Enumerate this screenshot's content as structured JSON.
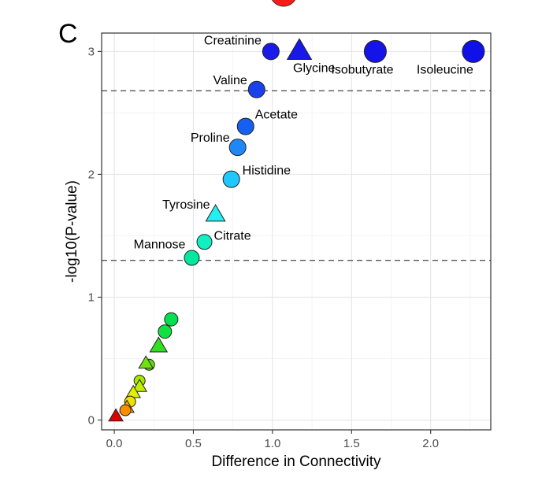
{
  "panel_label": "C",
  "chart_data": {
    "type": "scatter",
    "title": "",
    "xlabel": "Difference in Connectivity",
    "ylabel": "-log10(P-value)",
    "xlim": [
      -0.08,
      2.38
    ],
    "ylim": [
      -0.08,
      3.15
    ],
    "x_ticks": [
      0.0,
      0.5,
      1.0,
      1.5,
      2.0
    ],
    "x_tick_labels": [
      "0.0",
      "0.5",
      "1.0",
      "1.5",
      "2.0"
    ],
    "y_ticks": [
      0,
      1,
      2,
      3
    ],
    "y_tick_labels": [
      "0",
      "1",
      "2",
      "3"
    ],
    "grid": true,
    "reference_lines_y": [
      2.68,
      1.3
    ],
    "color_scale": [
      "#e00000",
      "#ff8c00",
      "#f2f000",
      "#7cf000",
      "#00e040",
      "#00f0c8",
      "#20d8ff",
      "#1e90ff",
      "#1046f0",
      "#1010e8"
    ],
    "points": [
      {
        "label": "Isoleucine",
        "x": 2.27,
        "y": 3.0,
        "shape": "circle",
        "color": "#1010e8"
      },
      {
        "label": "Isobutyrate",
        "x": 1.65,
        "y": 3.0,
        "shape": "circle",
        "color": "#1414e8"
      },
      {
        "label": "Glycine",
        "x": 1.17,
        "y": 3.0,
        "shape": "triangle",
        "color": "#1818e8"
      },
      {
        "label": "Creatinine",
        "x": 0.99,
        "y": 3.0,
        "shape": "circle",
        "color": "#1a1aea"
      },
      {
        "label": "Valine",
        "x": 0.9,
        "y": 2.69,
        "shape": "circle",
        "color": "#1a40ea"
      },
      {
        "label": "Acetate",
        "x": 0.83,
        "y": 2.39,
        "shape": "circle",
        "color": "#1560f0"
      },
      {
        "label": "Proline",
        "x": 0.78,
        "y": 2.22,
        "shape": "circle",
        "color": "#1e88f8"
      },
      {
        "label": "Histidine",
        "x": 0.74,
        "y": 1.96,
        "shape": "circle",
        "color": "#20c8ff"
      },
      {
        "label": "Tyrosine",
        "x": 0.64,
        "y": 1.67,
        "shape": "triangle",
        "color": "#20f0f0"
      },
      {
        "label": "Citrate",
        "x": 0.57,
        "y": 1.45,
        "shape": "circle",
        "color": "#10f0c0"
      },
      {
        "label": "Mannose",
        "x": 0.49,
        "y": 1.32,
        "shape": "circle",
        "color": "#00e8a0"
      },
      {
        "label": "",
        "x": 0.36,
        "y": 0.82,
        "shape": "circle",
        "color": "#00e050"
      },
      {
        "label": "",
        "x": 0.32,
        "y": 0.72,
        "shape": "circle",
        "color": "#10e040"
      },
      {
        "label": "",
        "x": 0.28,
        "y": 0.6,
        "shape": "triangle",
        "color": "#30e020"
      },
      {
        "label": "",
        "x": 0.22,
        "y": 0.45,
        "shape": "circle",
        "color": "#60e010"
      },
      {
        "label": "",
        "x": 0.2,
        "y": 0.46,
        "shape": "triangle",
        "color": "#70e010"
      },
      {
        "label": "",
        "x": 0.16,
        "y": 0.32,
        "shape": "circle",
        "color": "#a8e800"
      },
      {
        "label": "",
        "x": 0.16,
        "y": 0.27,
        "shape": "triangle",
        "color": "#c0f000"
      },
      {
        "label": "",
        "x": 0.12,
        "y": 0.22,
        "shape": "triangle",
        "color": "#e0f000"
      },
      {
        "label": "",
        "x": 0.1,
        "y": 0.15,
        "shape": "circle",
        "color": "#f0e000"
      },
      {
        "label": "",
        "x": 0.08,
        "y": 0.1,
        "shape": "triangle",
        "color": "#ffb000"
      },
      {
        "label": "",
        "x": 0.07,
        "y": 0.08,
        "shape": "circle",
        "color": "#ff8c00"
      },
      {
        "label": "",
        "x": 0.01,
        "y": 0.03,
        "shape": "triangle",
        "color": "#e00000"
      }
    ]
  }
}
